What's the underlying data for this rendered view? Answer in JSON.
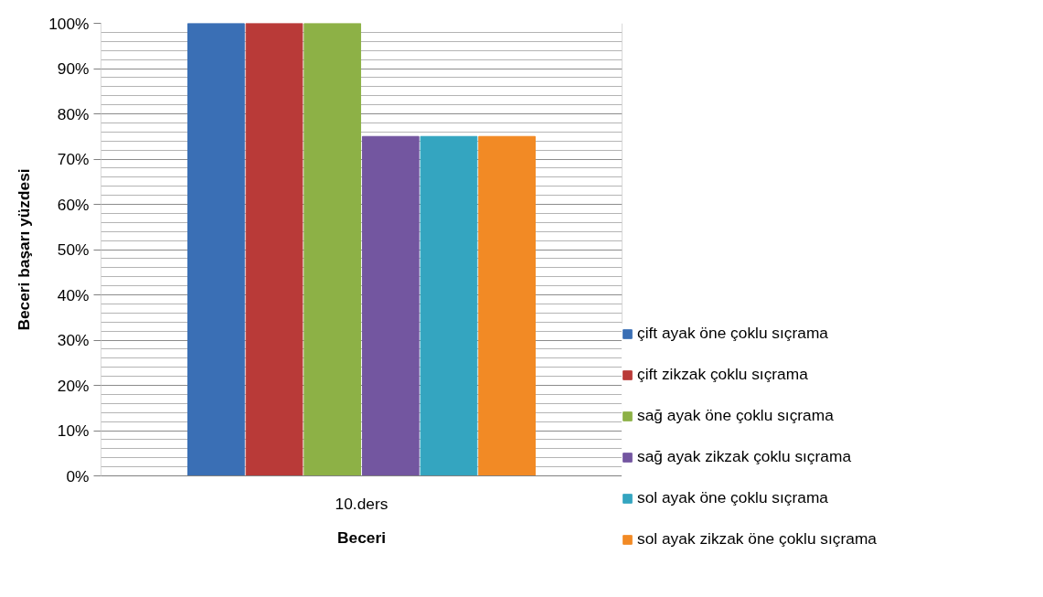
{
  "chart_data": {
    "type": "bar",
    "xlabel": "Beceri",
    "ylabel": "Beceri başarı yüzdesi",
    "categories": [
      "10.ders"
    ],
    "series": [
      {
        "name": "çift ayak öne çoklu sıçrama",
        "color": "#3a6fb5",
        "values": [
          100
        ]
      },
      {
        "name": "çift zikzak çoklu sıçrama",
        "color": "#b93a38",
        "values": [
          100
        ]
      },
      {
        "name": "sağ ayak öne çoklu sıçrama",
        "color": "#8db146",
        "values": [
          100
        ]
      },
      {
        "name": "sağ ayak zikzak çoklu sıçrama",
        "color": "#7356a0",
        "values": [
          75
        ]
      },
      {
        "name": "sol ayak öne çoklu sıçrama",
        "color": "#34a5c0",
        "values": [
          75
        ]
      },
      {
        "name": "sol ayak zikzak öne çoklu sıçrama",
        "color": "#f28a25",
        "values": [
          75
        ]
      }
    ],
    "ylim": [
      0,
      100
    ],
    "yticks": [
      {
        "value": 0,
        "label": "0%"
      },
      {
        "value": 10,
        "label": "10%"
      },
      {
        "value": 20,
        "label": "20%"
      },
      {
        "value": 30,
        "label": "30%"
      },
      {
        "value": 40,
        "label": "40%"
      },
      {
        "value": 50,
        "label": "50%"
      },
      {
        "value": 60,
        "label": "60%"
      },
      {
        "value": 70,
        "label": "70%"
      },
      {
        "value": 80,
        "label": "80%"
      },
      {
        "value": 90,
        "label": "90%"
      },
      {
        "value": 100,
        "label": "100%"
      }
    ],
    "grid": "y",
    "legend": "right"
  }
}
